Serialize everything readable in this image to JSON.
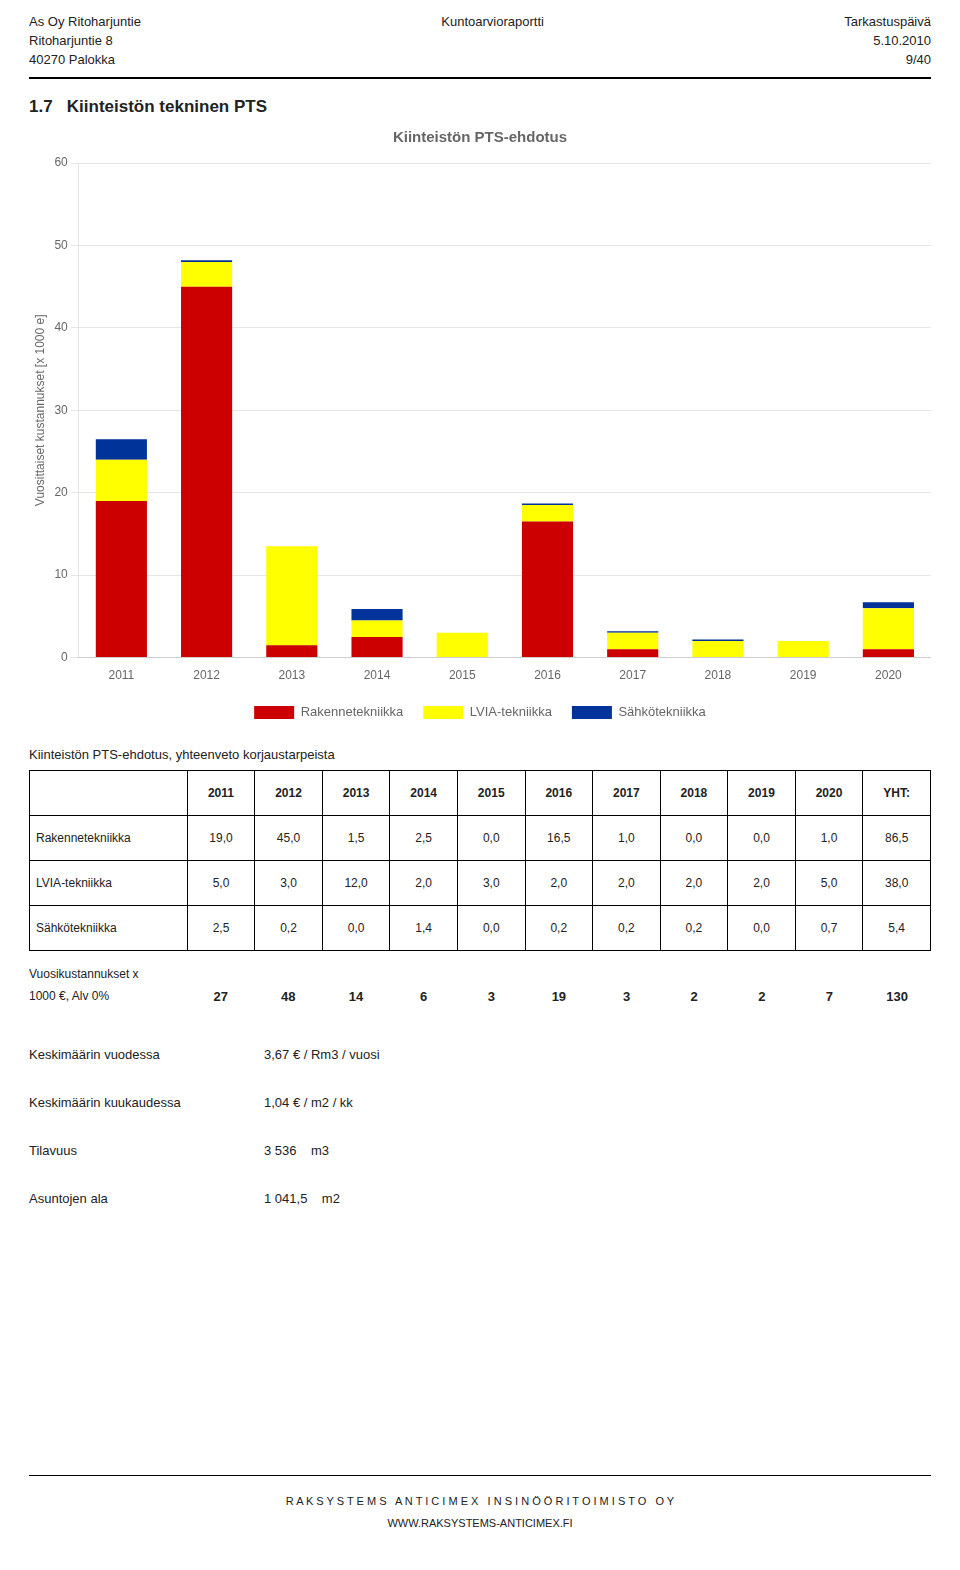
{
  "chart_data": {
    "type": "bar",
    "title": "Kiinteistön PTS-ehdotus",
    "categories": [
      "2011",
      "2012",
      "2013",
      "2014",
      "2015",
      "2016",
      "2017",
      "2018",
      "2019",
      "2020"
    ],
    "series": [
      {
        "name": "Rakennetekniikka",
        "color": "#cc0000",
        "values": [
          19.0,
          45.0,
          1.5,
          2.5,
          0.0,
          16.5,
          1.0,
          0.0,
          0.0,
          1.0
        ]
      },
      {
        "name": "LVIA-tekniikka",
        "color": "#ffff00",
        "values": [
          5.0,
          3.0,
          12.0,
          2.0,
          3.0,
          2.0,
          2.0,
          2.0,
          2.0,
          5.0
        ]
      },
      {
        "name": "Sähkötekniikka",
        "color": "#003399",
        "values": [
          2.5,
          0.2,
          0.0,
          1.4,
          0.0,
          0.2,
          0.2,
          0.2,
          0.0,
          0.7
        ]
      }
    ],
    "ylabel": "Vuosittaiset kustannukset [x 1000 e]",
    "ylim": [
      0,
      60
    ],
    "yticks": [
      0,
      10,
      20,
      30,
      40,
      50,
      60
    ],
    "grid": true,
    "stacked": true,
    "legend": "bottom"
  },
  "header": {
    "left": [
      "As Oy Ritoharjuntie",
      "Ritoharjuntie 8",
      "40270 Palokka"
    ],
    "center": "Kuntoarvioraportti",
    "right": [
      "Tarkastuspäivä",
      "5.10.2010",
      "9/40"
    ]
  },
  "section_title": "1.7   Kiinteistön tekninen PTS",
  "table": {
    "title": "Kiinteistön PTS-ehdotus, yhteenveto korjaustarpeista",
    "columns": [
      "2011",
      "2012",
      "2013",
      "2014",
      "2015",
      "2016",
      "2017",
      "2018",
      "2019",
      "2020",
      "YHT:"
    ],
    "rows": [
      [
        "Rakennetekniikka",
        "19,0",
        "45,0",
        "1,5",
        "2,5",
        "0,0",
        "16,5",
        "1,0",
        "0,0",
        "0,0",
        "1,0",
        "86,5"
      ],
      [
        "LVIA-tekniikka",
        "5,0",
        "3,0",
        "12,0",
        "2,0",
        "3,0",
        "2,0",
        "2,0",
        "2,0",
        "2,0",
        "5,0",
        "38,0"
      ],
      [
        "Sähkötekniikka",
        "2,5",
        "0,2",
        "0,0",
        "1,4",
        "0,0",
        "0,2",
        "0,2",
        "0,2",
        "0,0",
        "0,7",
        "5,4"
      ]
    ],
    "totals_label": [
      "Vuosikustannukset x",
      "1000 €, Alv 0%"
    ],
    "totals": [
      "27",
      "48",
      "14",
      "6",
      "3",
      "19",
      "3",
      "2",
      "2",
      "7",
      "130"
    ]
  },
  "extra_info": [
    [
      "Keskimäärin vuodessa",
      "3,67 € / Rm3 / vuosi"
    ],
    [
      "Keskimäärin kuukaudessa",
      "1,04 € / m2 / kk"
    ],
    [
      "Tilavuus",
      "3 536    m3"
    ],
    [
      "Asuntojen ala",
      "1 041,5    m2"
    ]
  ],
  "footer": [
    "R A K S Y S T E M S   A N T I C I M E X   I N S I N Ö Ö R I T O I M I S T O   O Y",
    "WWW.RAKSYSTEMS-ANTICIMEX.FI"
  ]
}
